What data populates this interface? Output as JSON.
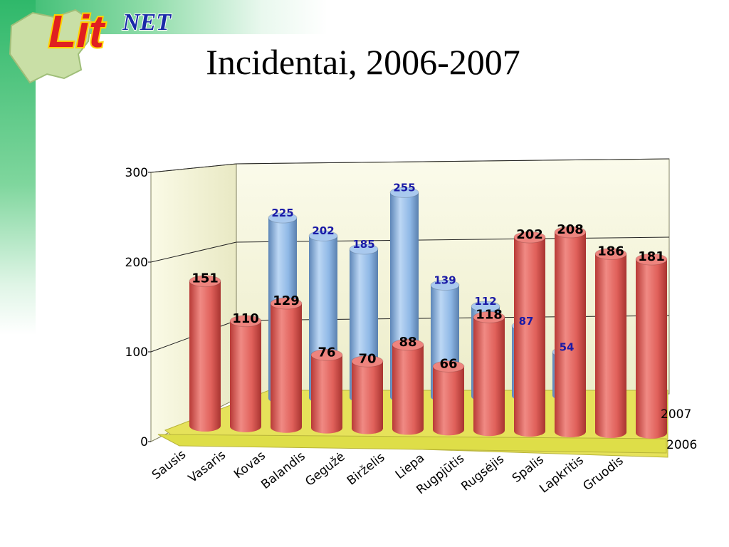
{
  "header": {
    "logo_text_lit": "Lit",
    "logo_text_net": "NET",
    "title": "Incidentai, 2006-2007"
  },
  "colors": {
    "series_2006": "#e0605a",
    "series_2007": "#8fb8e6",
    "floor": "#e6e25a",
    "back_wall": "#f2f2d8",
    "label_2007_text": "#1a1aa6",
    "label_2006_text": "#000000"
  },
  "chart_data": {
    "type": "bar",
    "title": "",
    "xlabel": "",
    "ylabel": "",
    "ylim": [
      0,
      300
    ],
    "yticks": [
      "0",
      "100",
      "200",
      "300"
    ],
    "categories": [
      "Sausis",
      "Vasaris",
      "Kovas",
      "Balandis",
      "Gegužė",
      "Birželis",
      "Liepa",
      "Rugpjūtis",
      "Rugsėjis",
      "Spalis",
      "Lapkritis",
      "Gruodis"
    ],
    "series": [
      {
        "name": "2007",
        "values": [
          null,
          225,
          202,
          185,
          255,
          139,
          112,
          87,
          54,
          null,
          null,
          null
        ]
      },
      {
        "name": "2006",
        "values": [
          151,
          110,
          129,
          76,
          70,
          88,
          66,
          118,
          202,
          208,
          186,
          181
        ]
      }
    ],
    "series_labels": [
      "2007",
      "2006"
    ],
    "grid": true,
    "style": "3d-cylinder"
  }
}
